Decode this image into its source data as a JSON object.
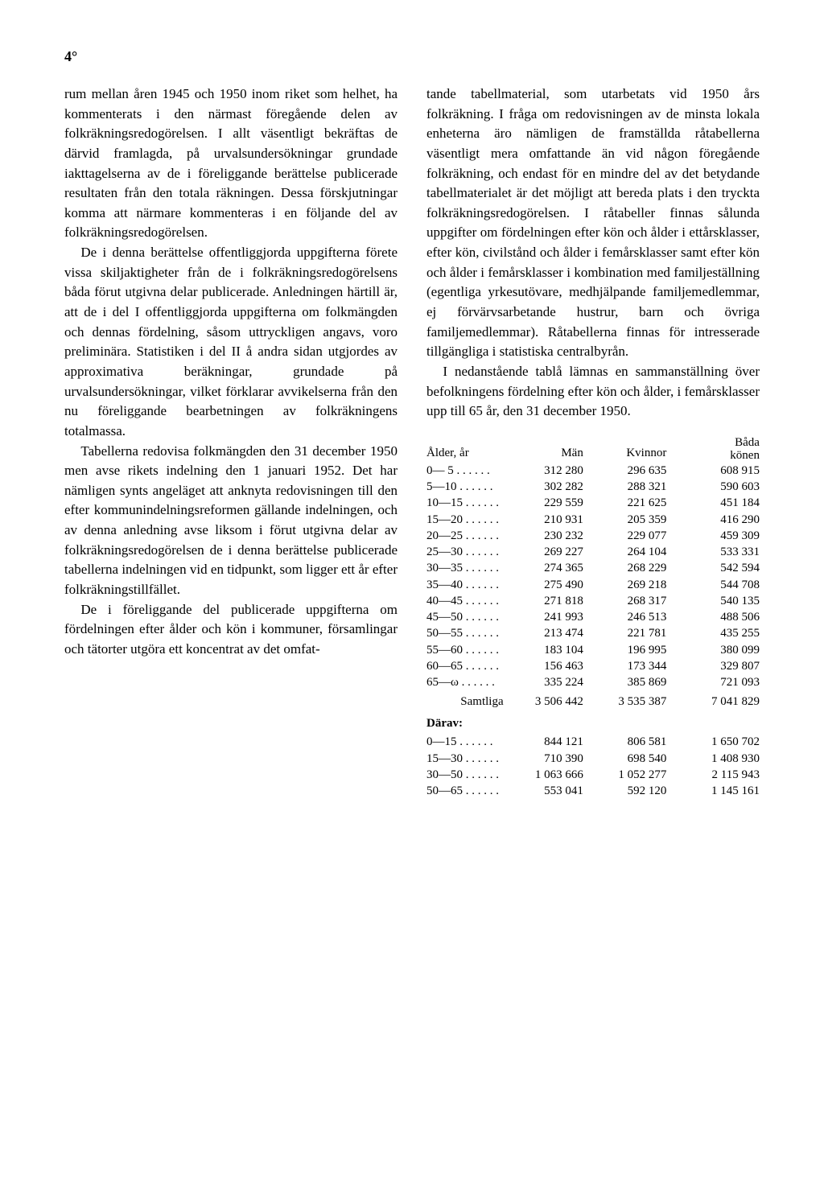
{
  "page_number": "4°",
  "left_column": {
    "p1": "rum mellan åren 1945 och 1950 inom riket som helhet, ha kommenterats i den närmast föregående delen av folkräkningsredogörelsen. I allt väsentligt bekräftas de därvid framlagda, på urvalsundersökningar grundade iakttagelserna av de i föreliggande berättelse publicerade resultaten från den totala räkningen. Dessa förskjutningar komma att närmare kommenteras i en följande del av folkräkningsredogörelsen.",
    "p2": "De i denna berättelse offentliggjorda uppgifterna förete vissa skiljaktigheter från de i folkräkningsredogörelsens båda förut utgivna delar publicerade. Anledningen härtill är, att de i del I offentliggjorda uppgifterna om folkmängden och dennas fördelning, såsom uttryckligen angavs, voro preliminära. Statistiken i del II å andra sidan utgjordes av approximativa beräkningar, grundade på urvalsundersökningar, vilket förklarar avvikelserna från den nu föreliggande bearbetningen av folkräkningens totalmassa.",
    "p3": "Tabellerna redovisa folkmängden den 31 december 1950 men avse rikets indelning den 1 januari 1952. Det har nämligen synts angeläget att anknyta redovisningen till den efter kommunindelningsreformen gällande indelningen, och av denna anledning avse liksom i förut utgivna delar av folkräkningsredogörelsen de i denna berättelse publicerade tabellerna indelningen vid en tidpunkt, som ligger ett år efter folkräkningstillfället.",
    "p4": "De i föreliggande del publicerade uppgifterna om fördelningen efter ålder och kön i kommuner, församlingar och tätorter utgöra ett koncentrat av det omfat-"
  },
  "right_column": {
    "p1": "tande tabellmaterial, som utarbetats vid 1950 års folkräkning. I fråga om redovisningen av de minsta lokala enheterna äro nämligen de framställda råtabellerna väsentligt mera omfattande än vid någon föregående folkräkning, och endast för en mindre del av det betydande tabellmaterialet är det möjligt att bereda plats i den tryckta folkräkningsredogörelsen. I råtabeller finnas sålunda uppgifter om fördelningen efter kön och ålder i ettårsklasser, efter kön, civilstånd och ålder i femårsklasser samt efter kön och ålder i femårsklasser i kombination med familjeställning (egentliga yrkesutövare, medhjälpande familjemedlemmar, ej förvärvsarbetande hustrur, barn och övriga familjemedlemmar). Råtabellerna finnas för intresserade tillgängliga i statistiska centralbyrån.",
    "p2": "I nedanstående tablå lämnas en sammanställning över befolkningens fördelning efter kön och ålder, i femårsklasser upp till 65 år, den 31 december 1950."
  },
  "table": {
    "headers": {
      "age": "Ålder, år",
      "men": "Män",
      "women": "Kvinnor",
      "both_line1": "Båda",
      "both_line2": "könen"
    },
    "rows": [
      {
        "age": "  0— 5 . . . . . .",
        "men": "312 280",
        "women": "296 635",
        "both": "608 915"
      },
      {
        "age": "  5—10 . . . . . .",
        "men": "302 282",
        "women": "288 321",
        "both": "590 603"
      },
      {
        "age": "10—15 . . . . . .",
        "men": "229 559",
        "women": "221 625",
        "both": "451 184"
      },
      {
        "age": "15—20 . . . . . .",
        "men": "210 931",
        "women": "205 359",
        "both": "416 290"
      },
      {
        "age": "20—25 . . . . . .",
        "men": "230 232",
        "women": "229 077",
        "both": "459 309"
      },
      {
        "age": "25—30 . . . . . .",
        "men": "269 227",
        "women": "264 104",
        "both": "533 331"
      },
      {
        "age": "30—35 . . . . . .",
        "men": "274 365",
        "women": "268 229",
        "both": "542 594"
      },
      {
        "age": "35—40 . . . . . .",
        "men": "275 490",
        "women": "269 218",
        "both": "544 708"
      },
      {
        "age": "40—45 . . . . . .",
        "men": "271 818",
        "women": "268 317",
        "both": "540 135"
      },
      {
        "age": "45—50 . . . . . .",
        "men": "241 993",
        "women": "246 513",
        "both": "488 506"
      },
      {
        "age": "50—55 . . . . . .",
        "men": "213 474",
        "women": "221 781",
        "both": "435 255"
      },
      {
        "age": "55—60 . . . . . .",
        "men": "183 104",
        "women": "196 995",
        "both": "380 099"
      },
      {
        "age": "60—65 . . . . . .",
        "men": "156 463",
        "women": "173 344",
        "both": "329 807"
      },
      {
        "age": "65—ω  . . . . . .",
        "men": "335 224",
        "women": "385 869",
        "both": "721 093"
      }
    ],
    "total": {
      "label": "Samtliga",
      "men": "3 506 442",
      "women": "3 535 387",
      "both": "7 041 829"
    },
    "sub_header": "Därav:",
    "sub_rows": [
      {
        "age": "  0—15 . . . . . .",
        "men": "844 121",
        "women": "806 581",
        "both": "1 650 702"
      },
      {
        "age": "15—30 . . . . . .",
        "men": "710 390",
        "women": "698 540",
        "both": "1 408 930"
      },
      {
        "age": "30—50 . . . . . .",
        "men": "1 063 666",
        "women": "1 052 277",
        "both": "2 115 943"
      },
      {
        "age": "50—65 . . . . . .",
        "men": "553 041",
        "women": "592 120",
        "both": "1 145 161"
      }
    ]
  }
}
